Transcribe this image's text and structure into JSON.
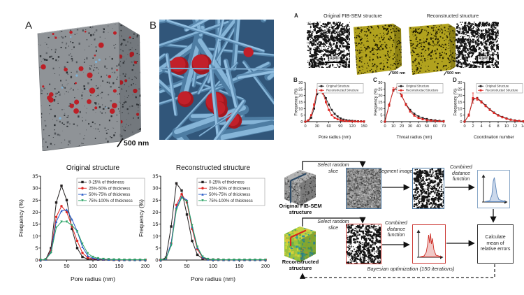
{
  "figure1": {
    "panel_a_label": "A",
    "panel_b_label": "B",
    "scale_label": "500 nm"
  },
  "figure2": {
    "panel_label": "A",
    "original_title": "Original FIB-SEM structure",
    "reconstructed_title": "Reconstructed structure",
    "scale_bar_left": "1 μm",
    "scale_bar_right": "1 μm",
    "scale_cube_left": "500 nm",
    "scale_cube_right": "500 nm"
  },
  "chart_data": [
    {
      "id": "pore_radius_comparison",
      "type": "line",
      "panel_label": "B",
      "xlabel": "Pore radius (nm)",
      "ylabel": "Frequency (%)",
      "xlim": [
        0,
        150
      ],
      "ylim": [
        0,
        30
      ],
      "xticks": [
        0,
        30,
        60,
        90,
        120,
        150
      ],
      "yticks": [
        0,
        5,
        10,
        15,
        20,
        25,
        30
      ],
      "legend_position": "top-right",
      "x": [
        0,
        7.5,
        15,
        22.5,
        30,
        37.5,
        45,
        52.5,
        60,
        67.5,
        75,
        82.5,
        90,
        97.5,
        105,
        112.5,
        120,
        127.5,
        135,
        142.5,
        150
      ],
      "series": [
        {
          "name": "Original Structure",
          "color": "#231f20",
          "values": [
            0,
            0.5,
            3,
            10,
            21,
            23,
            22,
            18,
            13,
            9,
            6,
            4,
            2.5,
            1.6,
            1.1,
            0.8,
            0.6,
            0.4,
            0.3,
            0.25,
            0.2
          ]
        },
        {
          "name": "Reconstructed Structure",
          "color": "#e0231f",
          "values": [
            0,
            1,
            5,
            13,
            24,
            27,
            22,
            15,
            9,
            5,
            3,
            1.8,
            1,
            0.6,
            0.4,
            0.3,
            0.2,
            0.15,
            0.1,
            0.1,
            0.1
          ],
          "yerr": [
            0,
            0.3,
            0.5,
            0.8,
            1,
            1.5,
            1,
            0.8,
            0.6,
            0.5,
            0.4,
            0.3,
            0.2,
            0.2,
            0.1,
            0.1,
            0.1,
            0,
            0,
            0,
            0
          ]
        }
      ]
    },
    {
      "id": "throat_radius_comparison",
      "type": "line",
      "panel_label": "C",
      "xlabel": "Throat radius (nm)",
      "ylabel": "Frequency (%)",
      "xlim": [
        0,
        70
      ],
      "ylim": [
        0,
        30
      ],
      "xticks": [
        0,
        10,
        20,
        30,
        40,
        50,
        60,
        70
      ],
      "yticks": [
        0,
        5,
        10,
        15,
        20,
        25,
        30
      ],
      "legend_position": "top-right",
      "x": [
        0,
        5,
        10,
        15,
        20,
        25,
        30,
        35,
        40,
        45,
        50,
        55,
        60,
        65,
        70
      ],
      "series": [
        {
          "name": "Original Structure",
          "color": "#231f20",
          "values": [
            0,
            13,
            24,
            25,
            19.5,
            13.5,
            9,
            6,
            4,
            2.8,
            2,
            1.4,
            1,
            0.6,
            0.4
          ]
        },
        {
          "name": "Reconstructed Structure",
          "color": "#e0231f",
          "values": [
            0,
            12.5,
            24.5,
            26.5,
            20,
            13,
            7.8,
            4.6,
            2.8,
            1.8,
            1.1,
            0.7,
            0.5,
            0.3,
            0.2
          ],
          "yerr": [
            0,
            1,
            1.5,
            2.5,
            1.2,
            0.8,
            0.6,
            0.4,
            0.3,
            0.2,
            0.2,
            0.1,
            0.1,
            0,
            0
          ]
        }
      ]
    },
    {
      "id": "coordination_number_comparison",
      "type": "line",
      "panel_label": "D",
      "xlabel": "Coordination number",
      "ylabel": "Frequency (%)",
      "xlim": [
        0,
        14
      ],
      "ylim": [
        0,
        30
      ],
      "xticks": [
        0,
        2,
        4,
        6,
        8,
        10,
        12,
        14
      ],
      "yticks": [
        0,
        5,
        10,
        15,
        20,
        25,
        30
      ],
      "legend_position": "top-right",
      "x": [
        0,
        1,
        2,
        3,
        4,
        5,
        6,
        7,
        8,
        9,
        10,
        11,
        12,
        13,
        14
      ],
      "series": [
        {
          "name": "Original Structure",
          "color": "#231f20",
          "values": [
            0,
            5,
            17,
            18,
            15.5,
            12.5,
            9.5,
            7,
            5,
            3.6,
            2.5,
            1.6,
            1,
            0.6,
            0.3
          ]
        },
        {
          "name": "Reconstructed Structure",
          "color": "#e0231f",
          "values": [
            0,
            5,
            18,
            17.5,
            15,
            12,
            9,
            6.7,
            4.7,
            3.3,
            2.2,
            1.4,
            0.8,
            0.5,
            0.3
          ],
          "yerr": [
            0,
            1,
            4,
            1.2,
            0.9,
            0.7,
            0.6,
            0.5,
            0.4,
            0.3,
            0.3,
            0.2,
            0.2,
            0.1,
            0.1
          ]
        }
      ]
    },
    {
      "id": "original_structure_thickness",
      "type": "line",
      "title": "Original structure",
      "xlabel": "Pore radius (nm)",
      "ylabel": "Frequency (%)",
      "xlim": [
        0,
        200
      ],
      "ylim": [
        0,
        35
      ],
      "xticks": [
        0,
        50,
        100,
        150,
        200
      ],
      "yticks": [
        0,
        5,
        10,
        15,
        20,
        25,
        30,
        35
      ],
      "legend_position": "top-right",
      "x": [
        0,
        10,
        20,
        30,
        40,
        50,
        60,
        70,
        80,
        90,
        100,
        110,
        120,
        130,
        140,
        150,
        160,
        170,
        180,
        190,
        200
      ],
      "series": [
        {
          "name": "0-25% of thickness",
          "color": "#231f20",
          "values": [
            0,
            0.3,
            5,
            24,
            31,
            25,
            13,
            5,
            1.3,
            0.4,
            0.3,
            0.2,
            0.2,
            0.2,
            0.1,
            0.1,
            0.1,
            0.1,
            0.1,
            0.1,
            0.1
          ]
        },
        {
          "name": "25%-50% of thickness",
          "color": "#e0231f",
          "values": [
            0,
            0.3,
            4,
            18,
            22.5,
            20,
            14,
            8,
            3,
            1,
            0.5,
            0.3,
            0.2,
            0.2,
            0.1,
            0.1,
            0.1,
            0.1,
            0.1,
            0.1,
            0.1
          ]
        },
        {
          "name": "50%-75% of thickness",
          "color": "#2457c5",
          "values": [
            0,
            0.3,
            3.5,
            16,
            20.5,
            21,
            17,
            12,
            5.5,
            1.8,
            0.8,
            0.4,
            0.3,
            0.2,
            0.2,
            0.1,
            0.1,
            0.1,
            0.1,
            0.1,
            0.1
          ]
        },
        {
          "name": "75%-100% of thickness",
          "color": "#28a263",
          "values": [
            0,
            0.3,
            3,
            13.5,
            16,
            16,
            14.5,
            12,
            6.8,
            2.8,
            1.3,
            0.7,
            0.4,
            0.3,
            0.2,
            0.2,
            0.1,
            0.1,
            0.1,
            0.1,
            0.1
          ]
        }
      ]
    },
    {
      "id": "reconstructed_structure_thickness",
      "type": "line",
      "title": "Reconstructed structure",
      "xlabel": "Pore radius (nm)",
      "ylabel": "Frequency (%)",
      "xlim": [
        0,
        200
      ],
      "ylim": [
        0,
        35
      ],
      "xticks": [
        0,
        50,
        100,
        150,
        200
      ],
      "yticks": [
        0,
        5,
        10,
        15,
        20,
        25,
        30,
        35
      ],
      "legend_position": "top-right",
      "x": [
        0,
        10,
        20,
        30,
        40,
        50,
        60,
        70,
        80,
        90,
        100,
        110,
        120,
        130,
        140,
        150,
        160,
        170,
        180,
        190,
        200
      ],
      "series": [
        {
          "name": "0-25% of thickness",
          "color": "#231f20",
          "values": [
            0,
            1,
            14,
            32,
            29,
            19,
            8,
            2.2,
            0.6,
            0.3,
            0.2,
            0.2,
            0.1,
            0.1,
            0.1,
            0.1,
            0.1,
            0.1,
            0.1,
            0.1,
            0.1
          ]
        },
        {
          "name": "25%-50% of thickness",
          "color": "#e0231f",
          "values": [
            0,
            0.5,
            7,
            23,
            27.5,
            24,
            13,
            4.5,
            1,
            0.3,
            0.2,
            0.1,
            0.1,
            0.1,
            0.1,
            0.1,
            0.1,
            0.1,
            0.1,
            0.1,
            0.1
          ]
        },
        {
          "name": "50%-75% of thickness",
          "color": "#2457c5",
          "values": [
            0,
            0.5,
            7,
            22,
            26.5,
            25,
            14,
            5.2,
            1.2,
            0.3,
            0.2,
            0.1,
            0.1,
            0.1,
            0.1,
            0.1,
            0.1,
            0.1,
            0.1,
            0.1,
            0.1
          ]
        },
        {
          "name": "75%-100% of thickness",
          "color": "#28a263",
          "values": [
            0,
            0.5,
            6,
            21,
            26,
            24.5,
            14.5,
            5.5,
            1.4,
            0.4,
            0.2,
            0.1,
            0.1,
            0.1,
            0.1,
            0.1,
            0.1,
            0.1,
            0.1,
            0.1,
            0.1
          ]
        }
      ]
    }
  ],
  "workflow": {
    "original_cube_label": "Original FIB-SEM structure",
    "reconstructed_cube_label": "Reconstructed structure",
    "select_random_slice": "Select random slice",
    "segment_image": "Segment image",
    "combined_distance_function": "Combined distance function",
    "calculate_label": "Calculate mean of relative errors",
    "bayesian_label": "Bayesian optimization (150 iterations)"
  },
  "colors": {
    "original_series": "#231f20",
    "reconstructed_series": "#e0231f",
    "thickness_blue": "#2457c5",
    "thickness_green": "#28a263",
    "cube_yellow": "#b1a21e",
    "network_tube_blue": "#86b5d8",
    "sphere_red": "#c2202a",
    "workflow_blue_frame": "#46749f",
    "workflow_red_frame": "#cc3a35"
  }
}
